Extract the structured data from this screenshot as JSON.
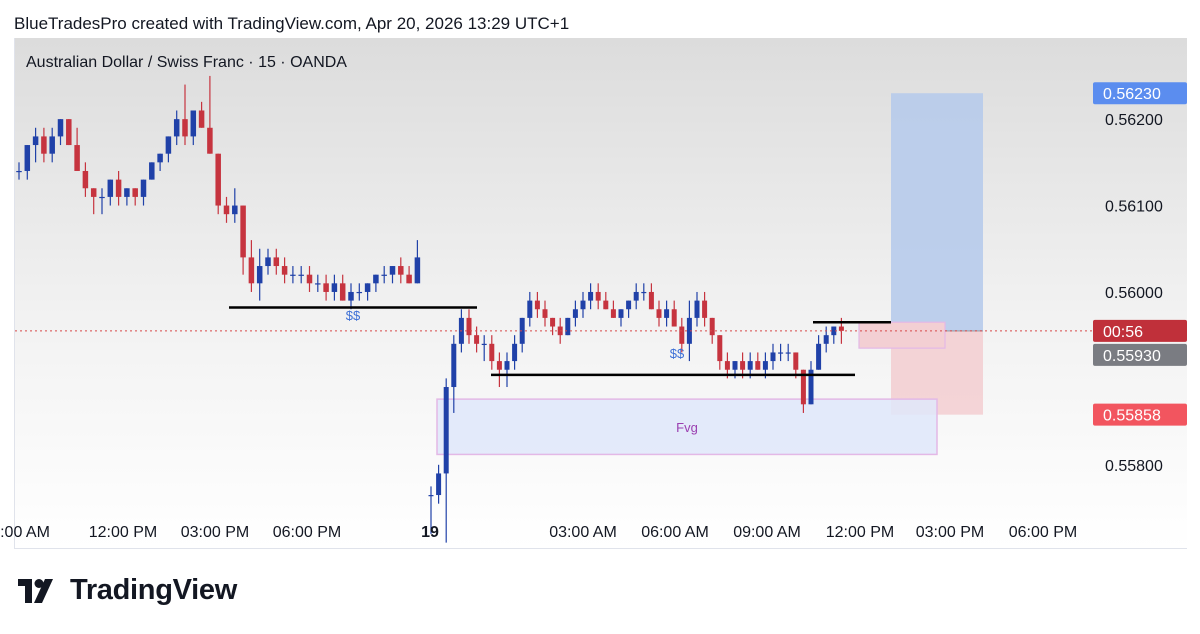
{
  "header": {
    "attribution": "BlueTradesPro created with TradingView.com, Apr 20, 2026 13:29 UTC+1"
  },
  "symbol": {
    "title": "Australian Dollar / Swiss Franc · 15 · OANDA"
  },
  "footer": {
    "brand": "TradingView",
    "logo_icon": "tradingview-logo-icon"
  },
  "colors": {
    "bull": "#2041a8",
    "bear": "#c6343f",
    "tp_zone": "#b7cbeb",
    "sl_zone": "#f3cfd3",
    "fvg_fill": "#dfe7fa",
    "fvg_border": "#e3b8e6",
    "price_line": "#d84a4a",
    "label_blue": "#5b8def",
    "label_red": "#f2555f",
    "label_gray": "#7a7c82"
  },
  "chart_data": {
    "type": "candlestick",
    "title": "Australian Dollar / Swiss Franc · 15 · OANDA",
    "ylim": [
      0.5575,
      0.5628
    ],
    "y_ticks": [
      0.562,
      0.561,
      0.56,
      0.558
    ],
    "y_tick_labels": [
      "0.56200",
      "0.56100",
      "0.56000",
      "0.55800"
    ],
    "x_ticks": [
      {
        "label": ":00 AM",
        "bold": false
      },
      {
        "label": "12:00 PM",
        "bold": false
      },
      {
        "label": "03:00 PM",
        "bold": false
      },
      {
        "label": "06:00 PM",
        "bold": false
      },
      {
        "label": "19",
        "bold": true
      },
      {
        "label": "03:00 AM",
        "bold": false
      },
      {
        "label": "06:00 AM",
        "bold": false
      },
      {
        "label": "09:00 AM",
        "bold": false
      },
      {
        "label": "12:00 PM",
        "bold": false
      },
      {
        "label": "03:00 PM",
        "bold": false
      },
      {
        "label": "06:00 PM",
        "bold": false
      }
    ],
    "price_labels": [
      {
        "text": "0.56230",
        "value": 0.5623,
        "style": "blue"
      },
      {
        "text": "00:56",
        "value": 0.55955,
        "style": "red"
      },
      {
        "text": "0.55930",
        "value": 0.5593,
        "style": "gray"
      },
      {
        "text": "0.55858",
        "value": 0.55858,
        "style": "salmon"
      }
    ],
    "current_price": 0.55955,
    "annotations": [
      {
        "text": "$$",
        "label_price": 0.55972,
        "line_price": 0.55982
      },
      {
        "text": "$$",
        "label_price": 0.55928,
        "line_price": 0.55904
      },
      {
        "text": "Fvg",
        "zone": [
          0.55812,
          0.55876
        ]
      }
    ],
    "position": {
      "entry": 0.55955,
      "target": 0.5623,
      "stop": 0.55858
    },
    "candles": [
      [
        0.5614,
        0.5615,
        0.5613,
        0.5614
      ],
      [
        0.5614,
        0.5617,
        0.5613,
        0.5617
      ],
      [
        0.5617,
        0.5619,
        0.5615,
        0.5618
      ],
      [
        0.5618,
        0.5619,
        0.5615,
        0.5616
      ],
      [
        0.5616,
        0.5619,
        0.5615,
        0.5618
      ],
      [
        0.5618,
        0.562,
        0.5617,
        0.562
      ],
      [
        0.562,
        0.562,
        0.5617,
        0.5617
      ],
      [
        0.5617,
        0.5619,
        0.5614,
        0.5614
      ],
      [
        0.5614,
        0.5615,
        0.5611,
        0.5612
      ],
      [
        0.5612,
        0.5612,
        0.5609,
        0.5611
      ],
      [
        0.5611,
        0.5612,
        0.5609,
        0.5611
      ],
      [
        0.5611,
        0.5613,
        0.561,
        0.5613
      ],
      [
        0.5613,
        0.5614,
        0.561,
        0.5611
      ],
      [
        0.5611,
        0.5612,
        0.561,
        0.5612
      ],
      [
        0.5612,
        0.5612,
        0.561,
        0.5611
      ],
      [
        0.5611,
        0.5613,
        0.561,
        0.5613
      ],
      [
        0.5613,
        0.5615,
        0.5613,
        0.5615
      ],
      [
        0.5615,
        0.5616,
        0.5614,
        0.5616
      ],
      [
        0.5616,
        0.5618,
        0.5615,
        0.5618
      ],
      [
        0.5618,
        0.5621,
        0.5617,
        0.562
      ],
      [
        0.562,
        0.5624,
        0.5617,
        0.5618
      ],
      [
        0.5618,
        0.5621,
        0.5617,
        0.5621
      ],
      [
        0.5621,
        0.5622,
        0.5619,
        0.5619
      ],
      [
        0.5619,
        0.5625,
        0.5616,
        0.5616
      ],
      [
        0.5616,
        0.5616,
        0.5609,
        0.561
      ],
      [
        0.561,
        0.5611,
        0.5608,
        0.5609
      ],
      [
        0.5609,
        0.5612,
        0.5608,
        0.561
      ],
      [
        0.561,
        0.561,
        0.5602,
        0.5604
      ],
      [
        0.5604,
        0.5606,
        0.56,
        0.5601
      ],
      [
        0.5601,
        0.5605,
        0.5599,
        0.5603
      ],
      [
        0.5603,
        0.5605,
        0.5602,
        0.5604
      ],
      [
        0.5604,
        0.5605,
        0.5602,
        0.5603
      ],
      [
        0.5603,
        0.5604,
        0.5601,
        0.5602
      ],
      [
        0.5602,
        0.5603,
        0.5601,
        0.5602
      ],
      [
        0.5602,
        0.5603,
        0.5601,
        0.5602
      ],
      [
        0.5602,
        0.5603,
        0.56,
        0.5601
      ],
      [
        0.5601,
        0.5602,
        0.56,
        0.5601
      ],
      [
        0.5601,
        0.5602,
        0.5599,
        0.56
      ],
      [
        0.56,
        0.5602,
        0.5599,
        0.5601
      ],
      [
        0.5601,
        0.5602,
        0.5599,
        0.5599
      ],
      [
        0.5599,
        0.5601,
        0.5598,
        0.56
      ],
      [
        0.56,
        0.5601,
        0.5599,
        0.56
      ],
      [
        0.56,
        0.5601,
        0.5599,
        0.5601
      ],
      [
        0.5601,
        0.5602,
        0.56,
        0.5602
      ],
      [
        0.5602,
        0.5603,
        0.5601,
        0.5602
      ],
      [
        0.5602,
        0.5603,
        0.5601,
        0.5603
      ],
      [
        0.5603,
        0.5604,
        0.5601,
        0.5602
      ],
      [
        0.5602,
        0.5603,
        0.5601,
        0.5601
      ],
      [
        0.5601,
        0.5606,
        0.5601,
        0.5604
      ],
      [
        0.55765,
        0.55775,
        0.5572,
        0.55765
      ],
      [
        0.55765,
        0.558,
        0.55755,
        0.5579
      ],
      [
        0.5579,
        0.559,
        0.5571,
        0.5589
      ],
      [
        0.5589,
        0.5595,
        0.5586,
        0.5594
      ],
      [
        0.5594,
        0.5598,
        0.5593,
        0.5597
      ],
      [
        0.5597,
        0.5598,
        0.5594,
        0.5595
      ],
      [
        0.5595,
        0.5596,
        0.5593,
        0.5594
      ],
      [
        0.5594,
        0.5595,
        0.5592,
        0.5594
      ],
      [
        0.5594,
        0.5595,
        0.5591,
        0.5592
      ],
      [
        0.5592,
        0.5593,
        0.5589,
        0.5591
      ],
      [
        0.5591,
        0.5593,
        0.5589,
        0.5592
      ],
      [
        0.5592,
        0.5595,
        0.5591,
        0.5594
      ],
      [
        0.5594,
        0.5597,
        0.5593,
        0.5597
      ],
      [
        0.5597,
        0.56,
        0.5596,
        0.5599
      ],
      [
        0.5599,
        0.56,
        0.5597,
        0.5598
      ],
      [
        0.5598,
        0.5599,
        0.5596,
        0.5597
      ],
      [
        0.5597,
        0.5597,
        0.5595,
        0.5596
      ],
      [
        0.5596,
        0.5597,
        0.5594,
        0.5595
      ],
      [
        0.5595,
        0.5597,
        0.5595,
        0.5597
      ],
      [
        0.5597,
        0.5599,
        0.5596,
        0.5598
      ],
      [
        0.5598,
        0.56,
        0.5597,
        0.5599
      ],
      [
        0.5599,
        0.5601,
        0.5598,
        0.56
      ],
      [
        0.56,
        0.5601,
        0.5598,
        0.5599
      ],
      [
        0.5599,
        0.56,
        0.5598,
        0.5598
      ],
      [
        0.5598,
        0.5599,
        0.5597,
        0.5597
      ],
      [
        0.5597,
        0.5598,
        0.5596,
        0.5598
      ],
      [
        0.5598,
        0.5599,
        0.5597,
        0.5599
      ],
      [
        0.5599,
        0.5601,
        0.5598,
        0.56
      ],
      [
        0.56,
        0.5601,
        0.5599,
        0.56
      ],
      [
        0.56,
        0.5601,
        0.5598,
        0.5598
      ],
      [
        0.5598,
        0.5599,
        0.5596,
        0.5597
      ],
      [
        0.5597,
        0.5599,
        0.5596,
        0.5598
      ],
      [
        0.5598,
        0.5599,
        0.5596,
        0.5596
      ],
      [
        0.5596,
        0.5597,
        0.5593,
        0.5594
      ],
      [
        0.5594,
        0.5599,
        0.5592,
        0.5597
      ],
      [
        0.5597,
        0.56,
        0.5596,
        0.5599
      ],
      [
        0.5599,
        0.56,
        0.5596,
        0.5597
      ],
      [
        0.5597,
        0.5597,
        0.5594,
        0.5595
      ],
      [
        0.5595,
        0.5595,
        0.5591,
        0.5592
      ],
      [
        0.5592,
        0.5593,
        0.559,
        0.5591
      ],
      [
        0.5591,
        0.5592,
        0.559,
        0.5592
      ],
      [
        0.5592,
        0.5593,
        0.559,
        0.5591
      ],
      [
        0.5591,
        0.5593,
        0.559,
        0.5592
      ],
      [
        0.5592,
        0.5593,
        0.5591,
        0.5591
      ],
      [
        0.5591,
        0.5593,
        0.559,
        0.5592
      ],
      [
        0.5592,
        0.5594,
        0.5591,
        0.5593
      ],
      [
        0.5593,
        0.5594,
        0.5592,
        0.5593
      ],
      [
        0.5593,
        0.5594,
        0.5592,
        0.5593
      ],
      [
        0.5593,
        0.5593,
        0.559,
        0.5591
      ],
      [
        0.5591,
        0.5591,
        0.5586,
        0.5587
      ],
      [
        0.5587,
        0.5592,
        0.5587,
        0.5591
      ],
      [
        0.5591,
        0.5595,
        0.5591,
        0.5594
      ],
      [
        0.5594,
        0.5596,
        0.5593,
        0.5595
      ],
      [
        0.5595,
        0.5596,
        0.5594,
        0.5596
      ],
      [
        0.5596,
        0.5597,
        0.5594,
        0.55955
      ]
    ]
  }
}
